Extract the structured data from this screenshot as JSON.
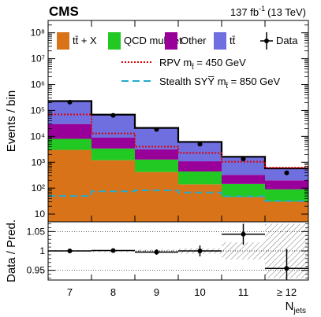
{
  "header": {
    "experiment": "CMS",
    "lumi_value": "137 fb",
    "lumi_exp": "-1",
    "lumi_energy": "(13 TeV)"
  },
  "chart_data": [
    {
      "type": "bar",
      "stacked": true,
      "log_y": true,
      "ylabel": "Events / bin",
      "ylim": [
        5,
        300000000
      ],
      "categories": [
        "7",
        "8",
        "9",
        "10",
        "11",
        "≥ 12"
      ],
      "series": [
        {
          "name": "tt̄ + X",
          "color": "#d9731a",
          "values": [
            3000,
            1200,
            420,
            140,
            45,
            30
          ]
        },
        {
          "name": "QCD multijet",
          "color": "#22c922",
          "values": [
            5000,
            2200,
            850,
            300,
            100,
            60
          ]
        },
        {
          "name": "Other",
          "color": "#990099",
          "values": [
            22000,
            5500,
            1900,
            650,
            180,
            110
          ]
        },
        {
          "name": "tt̄",
          "color": "#6f6fdf",
          "values": [
            200000,
            60000,
            18000,
            5000,
            1300,
            380
          ]
        }
      ],
      "signals": [
        {
          "name": "RPV",
          "mass_label": "450 GeV",
          "color": "#e00000",
          "style": "dotted",
          "values": [
            70000,
            13000,
            4000,
            2300,
            1050,
            620
          ]
        },
        {
          "name": "Stealth SYY̅",
          "mass_label": "850 GeV",
          "color": "#22aacc",
          "style": "dashed",
          "values": [
            50,
            75,
            82,
            68,
            48,
            32
          ]
        }
      ],
      "data_points": {
        "name": "Data",
        "values": [
          210000,
          65000,
          18500,
          5000,
          1350,
          390
        ]
      },
      "y_ticks": [
        "10",
        "10²",
        "10³",
        "10⁴",
        "10⁵",
        "10⁶",
        "10⁷",
        "10⁸"
      ],
      "legend": [
        {
          "label": "tt̄ + X",
          "kind": "fill",
          "color": "#d9731a"
        },
        {
          "label": "QCD multijet",
          "kind": "fill",
          "color": "#22c922"
        },
        {
          "label": "Other",
          "kind": "fill",
          "color": "#990099"
        },
        {
          "label": "tt̄",
          "kind": "fill",
          "color": "#6f6fdf"
        },
        {
          "label": "Data",
          "kind": "marker",
          "color": "#000000"
        }
      ],
      "signal_legend": [
        {
          "label": "RPV m",
          "sub": "t̃",
          "suffix": " = 450 GeV",
          "color": "#e00000",
          "style": "dotted"
        },
        {
          "label": "Stealth SYY̅ m",
          "sub": "t̃",
          "suffix": " = 850 GeV",
          "color": "#22aacc",
          "style": "dashed"
        }
      ]
    },
    {
      "type": "scatter",
      "ylabel": "Data / Pred.",
      "xlabel": "N",
      "xlabel_sub": "jets",
      "ylim": [
        0.925,
        1.075
      ],
      "y_ticks": [
        "0.95",
        "1",
        "1.05"
      ],
      "categories": [
        "7",
        "8",
        "9",
        "10",
        "11",
        "≥ 12"
      ],
      "ratio": [
        1.0,
        1.001,
        0.997,
        1.0,
        1.043,
        0.955
      ],
      "ratio_err": [
        0.002,
        0.004,
        0.007,
        0.014,
        0.027,
        0.05
      ],
      "uncertainty": [
        0.002,
        0.003,
        0.004,
        0.007,
        0.022,
        0.07
      ],
      "grid_lines": [
        0.95,
        1.0,
        1.05
      ]
    }
  ]
}
